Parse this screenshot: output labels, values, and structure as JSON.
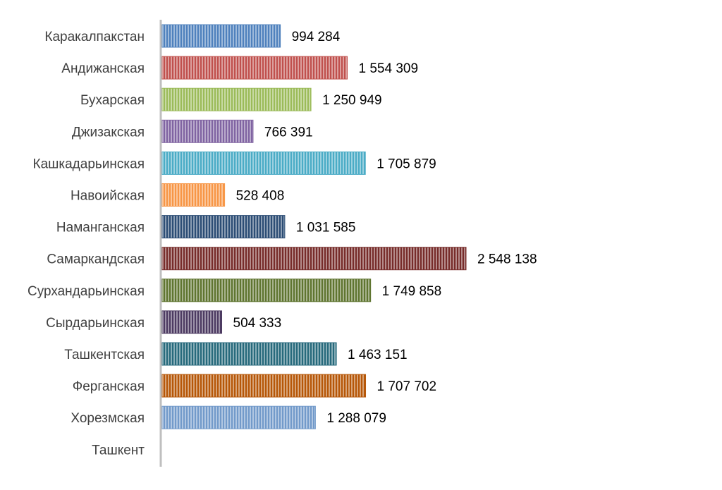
{
  "chart_data": {
    "type": "bar",
    "orientation": "horizontal",
    "categories": [
      "Каракалпакстан",
      "Андижанская",
      "Бухарская",
      "Джизакская",
      "Кашкадарьинская",
      "Навоийская",
      "Наманганская",
      "Самаркандская",
      "Сурхандарьинская",
      "Сырдарьинская",
      "Ташкентская",
      "Ферганская",
      "Хорезмская",
      "Ташкент"
    ],
    "values": [
      994284,
      1554309,
      1250949,
      766391,
      1705879,
      528408,
      1031585,
      2548138,
      1749858,
      504333,
      1463151,
      1707702,
      1288079,
      null
    ],
    "value_labels": [
      "994 284",
      "1 554 309",
      "1 250 949",
      "766 391",
      "1 705 879",
      "528 408",
      "1 031 585",
      "2 548 138",
      "1 749 858",
      "504 333",
      "1 463 151",
      "1 707 702",
      "1 288 079",
      ""
    ],
    "colors": [
      "#4f81bd",
      "#c0504d",
      "#9bbb59",
      "#8064a2",
      "#4bacc6",
      "#f79646",
      "#2c4d75",
      "#772c2a",
      "#5f7530",
      "#4d3b62",
      "#276a7c",
      "#b65708",
      "#729aca",
      "#c0504d"
    ],
    "pattern": "vertical-stripes",
    "title": "",
    "xlabel": "",
    "ylabel": "",
    "xlim": [
      0,
      2548138
    ],
    "grid": false,
    "legend": "none"
  }
}
